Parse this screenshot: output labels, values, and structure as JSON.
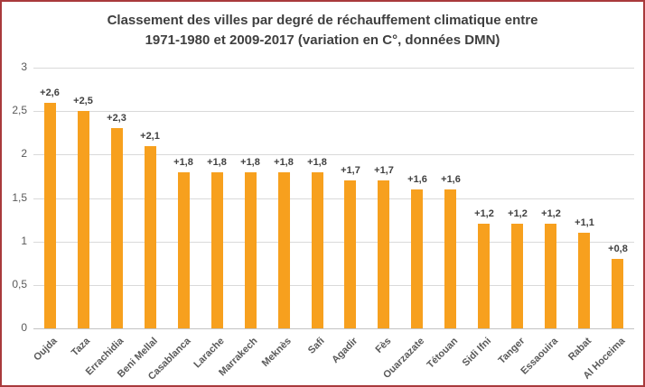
{
  "chart_data": {
    "type": "bar",
    "title_line1": "Classement des villes par degré de réchauffement climatique entre",
    "title_line2": "1971-1980 et 2009-2017 (variation en C°, données DMN)",
    "categories": [
      "Oujda",
      "Taza",
      "Errachidia",
      "Beni Mellal",
      "Casablanca",
      "Larache",
      "Marrakech",
      "Meknès",
      "Safi",
      "Agadir",
      "Fès",
      "Ouarzazate",
      "Tétouan",
      "Sidi Ifni",
      "Tanger",
      "Essaouira",
      "Rabat",
      "Al Hoceima"
    ],
    "values": [
      2.6,
      2.5,
      2.3,
      2.1,
      1.8,
      1.8,
      1.8,
      1.8,
      1.8,
      1.7,
      1.7,
      1.6,
      1.6,
      1.2,
      1.2,
      1.2,
      1.1,
      0.8
    ],
    "data_labels": [
      "+2,6",
      "+2,5",
      "+2,3",
      "+2,1",
      "+1,8",
      "+1,8",
      "+1,8",
      "+1,8",
      "+1,8",
      "+1,7",
      "+1,7",
      "+1,6",
      "+1,6",
      "+1,2",
      "+1,2",
      "+1,2",
      "+1,1",
      "+0,8"
    ],
    "y_ticks": [
      "3",
      "2,5",
      "2",
      "1,5",
      "1",
      "0,5",
      "0"
    ],
    "y_tick_values": [
      3,
      2.5,
      2,
      1.5,
      1,
      0.5,
      0
    ],
    "ylim": [
      0,
      3
    ],
    "xlabel": "",
    "ylabel": "",
    "grid": true,
    "legend_position": "none",
    "colors": {
      "bar": "#f7a01e",
      "value_label": "#404040",
      "axis_text": "#595959",
      "gridline": "#d9d9d9",
      "baseline": "#c3c3c3",
      "title": "#3f3f3f",
      "frame_border": "#a93a3c",
      "background": "#ffffff"
    }
  }
}
